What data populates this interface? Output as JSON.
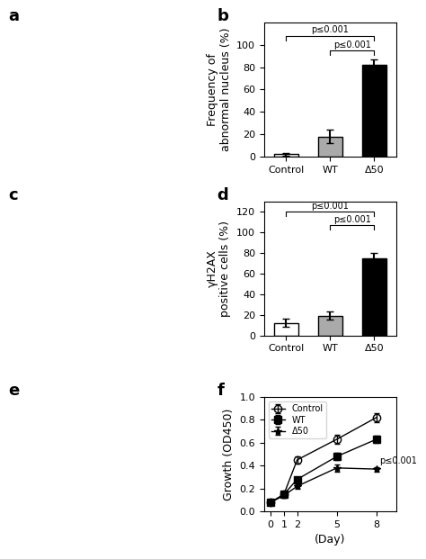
{
  "panel_labels": [
    "a",
    "b",
    "c",
    "d",
    "e",
    "f"
  ],
  "chart_data": [
    {
      "type": "bar",
      "categories": [
        "Control",
        "WT",
        "Δ50"
      ],
      "values": [
        2,
        18,
        82
      ],
      "errors": [
        1,
        6,
        5
      ],
      "colors": [
        "white",
        "#aaaaaa",
        "black"
      ],
      "y_label": "Frequency of\nabnormal nucleus (%)",
      "ylim": [
        0,
        120
      ],
      "yticks": [
        0,
        20,
        40,
        60,
        80,
        100
      ],
      "annotations": [
        {
          "text": "p≤0.001",
          "between": [
            "Control",
            "Δ50"
          ],
          "y": 108
        },
        {
          "text": "p≤0.001",
          "between": [
            "WT",
            "Δ50"
          ],
          "y": 95
        }
      ]
    },
    {
      "type": "bar",
      "categories": [
        "Control",
        "WT",
        "Δ50"
      ],
      "values": [
        12,
        19,
        75
      ],
      "errors": [
        4,
        4,
        5
      ],
      "colors": [
        "white",
        "#aaaaaa",
        "black"
      ],
      "y_label": "γH2AX\npositive cells (%)",
      "ylim": [
        0,
        130
      ],
      "yticks": [
        0,
        20,
        40,
        60,
        80,
        100,
        120
      ],
      "annotations": [
        {
          "text": "p≤0.001",
          "between": [
            "Control",
            "Δ50"
          ],
          "y": 120
        },
        {
          "text": "p≤0.001",
          "between": [
            "WT",
            "Δ50"
          ],
          "y": 107
        }
      ]
    },
    {
      "type": "line",
      "x_label": "(Day)",
      "y_label": "Growth (OD450)",
      "xlim": [
        -0.5,
        9.5
      ],
      "ylim": [
        0,
        1
      ],
      "xticks": [
        0,
        1,
        2,
        5,
        8
      ],
      "yticks": [
        {
          "value": 0,
          "label": "0.0"
        },
        0.2,
        0.4,
        0.6,
        0.8,
        {
          "value": 1,
          "label": "1.0"
        }
      ],
      "legend": "upper left",
      "series": [
        {
          "name": "Control",
          "x": [
            0,
            1,
            2,
            5,
            8
          ],
          "values": [
            0.08,
            0.15,
            0.45,
            0.63,
            0.82
          ],
          "errors": [
            0.01,
            0.02,
            0.03,
            0.04,
            0.04
          ],
          "marker": "circle-open",
          "color": "black"
        },
        {
          "name": "WT",
          "x": [
            0,
            1,
            2,
            5,
            8
          ],
          "values": [
            0.08,
            0.15,
            0.28,
            0.48,
            0.63
          ],
          "errors": [
            0.01,
            0.02,
            0.02,
            0.03,
            0.03
          ],
          "marker": "square",
          "color": "black"
        },
        {
          "name": "Δ50",
          "x": [
            0,
            1,
            2,
            5,
            8
          ],
          "values": [
            0.08,
            0.14,
            0.22,
            0.38,
            0.37
          ],
          "errors": [
            0.01,
            0.02,
            0.02,
            0.03,
            0.02
          ],
          "marker": "star",
          "color": "black"
        }
      ],
      "annotations": [
        {
          "text": "p≤0.001",
          "x": 8.2,
          "y": 0.44
        }
      ]
    }
  ]
}
